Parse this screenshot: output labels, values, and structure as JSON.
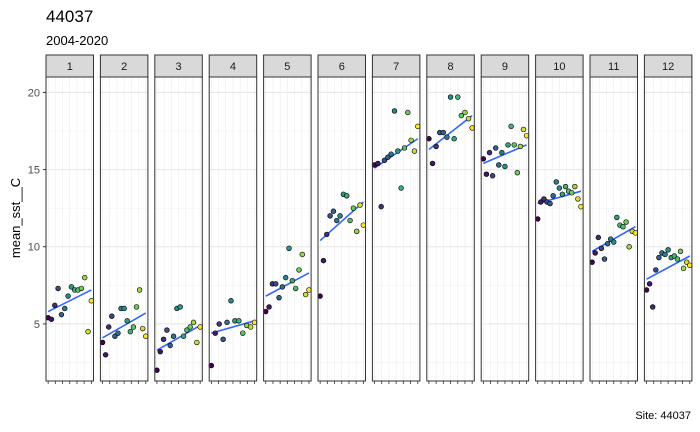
{
  "chart_data": {
    "type": "scatter",
    "title": "44037",
    "subtitle": "2004-2020",
    "caption": "Site: 44037",
    "xlabel": "",
    "ylabel": "mean_sst__C",
    "ylim": [
      1.3,
      21.0
    ],
    "y_ticks": [
      5,
      10,
      15,
      20
    ],
    "grid": true,
    "legend": "none",
    "point_colormap": [
      "#440154",
      "#3b528b",
      "#21918c",
      "#5ec962",
      "#fde725"
    ],
    "trend_color": "#3366ff",
    "panel_strip_fill": "#d9d9d9",
    "facets": [
      {
        "label": "1",
        "y": [
          5.4,
          5.3,
          6.2,
          7.3,
          5.6,
          6.0,
          6.8,
          7.4,
          7.2,
          7.2,
          7.3,
          8.0,
          4.5,
          6.5
        ],
        "trend": [
          5.8,
          7.2
        ]
      },
      {
        "label": "2",
        "y": [
          3.8,
          3.0,
          4.8,
          5.5,
          4.2,
          4.4,
          6.0,
          6.0,
          5.2,
          4.5,
          4.8,
          6.1,
          7.2,
          4.7,
          4.2
        ],
        "trend": [
          4.1,
          5.7
        ]
      },
      {
        "label": "3",
        "y": [
          2.0,
          3.2,
          4.0,
          4.6,
          3.6,
          4.2,
          6.0,
          6.1,
          4.2,
          4.6,
          4.8,
          5.1,
          3.8,
          4.8
        ],
        "trend": [
          3.3,
          4.9
        ]
      },
      {
        "label": "4",
        "y": [
          2.3,
          4.4,
          5.0,
          4.0,
          5.1,
          6.5,
          5.2,
          5.2,
          4.4,
          4.9,
          4.8,
          5.1
        ],
        "trend": [
          4.4,
          5.2
        ]
      },
      {
        "label": "5",
        "y": [
          5.8,
          6.1,
          7.6,
          7.6,
          6.7,
          7.4,
          8.0,
          9.9,
          7.8,
          7.3,
          8.5,
          9.5,
          6.9,
          7.2
        ],
        "trend": [
          6.8,
          8.3
        ]
      },
      {
        "label": "6",
        "y": [
          6.8,
          9.1,
          10.8,
          12.0,
          12.3,
          11.7,
          12.0,
          13.4,
          13.3,
          11.7,
          12.5,
          11.0,
          12.7,
          11.4
        ],
        "trend": [
          10.4,
          12.9
        ]
      },
      {
        "label": "7",
        "y": [
          15.3,
          15.4,
          12.6,
          15.6,
          15.8,
          16.0,
          18.8,
          16.2,
          13.8,
          16.4,
          18.7,
          16.9,
          16.2,
          17.8
        ],
        "trend": [
          15.1,
          17.0
        ]
      },
      {
        "label": "8",
        "y": [
          17.0,
          15.4,
          16.5,
          17.4,
          17.4,
          17.1,
          19.7,
          17.0,
          19.7,
          18.5,
          18.7,
          18.3,
          17.7
        ],
        "trend": [
          16.3,
          18.5
        ]
      },
      {
        "label": "9",
        "y": [
          15.7,
          14.7,
          16.1,
          14.6,
          16.4,
          15.3,
          16.1,
          15.2,
          16.6,
          17.8,
          16.6,
          14.8,
          16.5,
          17.6,
          17.2
        ],
        "trend": [
          15.4,
          16.6
        ]
      },
      {
        "label": "10",
        "y": [
          11.8,
          12.9,
          13.1,
          12.9,
          12.8,
          13.3,
          14.2,
          13.8,
          13.4,
          13.9,
          13.6,
          13.5,
          13.9,
          13.1,
          12.6
        ],
        "trend": [
          12.8,
          13.6
        ]
      },
      {
        "label": "11",
        "y": [
          9.0,
          9.6,
          10.6,
          9.9,
          9.2,
          10.2,
          10.5,
          10.3,
          11.9,
          11.4,
          11.3,
          11.6,
          10.0,
          11.0,
          10.9
        ],
        "trend": [
          9.7,
          11.3
        ]
      },
      {
        "label": "12",
        "y": [
          7.2,
          7.6,
          6.1,
          8.5,
          9.3,
          9.6,
          9.5,
          9.8,
          9.3,
          9.4,
          9.2,
          9.7,
          8.6,
          9.0,
          8.8
        ],
        "trend": [
          7.9,
          9.4
        ]
      }
    ]
  }
}
